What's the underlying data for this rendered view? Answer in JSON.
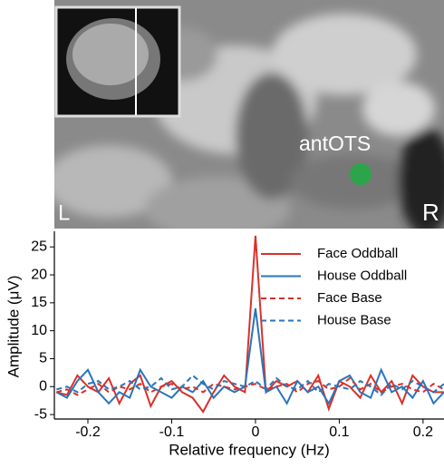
{
  "image_labels": {
    "region": "antOTS",
    "left": "L",
    "right": "R"
  },
  "chart_data": {
    "type": "line",
    "xlabel": "Relative frequency (Hz)",
    "ylabel": "Amplitude (μV)",
    "x": [
      -0.2375,
      -0.225,
      -0.2125,
      -0.2,
      -0.1875,
      -0.175,
      -0.1625,
      -0.15,
      -0.1375,
      -0.125,
      -0.1125,
      -0.1,
      -0.0875,
      -0.075,
      -0.0625,
      -0.05,
      -0.0375,
      -0.025,
      -0.0125,
      0,
      0.0125,
      0.025,
      0.0375,
      0.05,
      0.0625,
      0.075,
      0.0875,
      0.1,
      0.1125,
      0.125,
      0.1375,
      0.15,
      0.1625,
      0.175,
      0.1875,
      0.2,
      0.2125,
      0.225
    ],
    "series": [
      {
        "name": "Face Oddball",
        "color": "#d9312b",
        "linestyle": "solid",
        "values": [
          -1,
          -1.5,
          2,
          0,
          -1,
          1.5,
          -3,
          0.5,
          2,
          -3.5,
          0,
          1,
          -1,
          -2,
          -4.5,
          -1,
          2,
          0,
          -1,
          27,
          -1,
          1,
          0,
          1,
          -1,
          2,
          -4,
          1,
          0,
          -2,
          2,
          -1,
          1,
          -3,
          2,
          0,
          -1,
          -1
        ]
      },
      {
        "name": "House Oddball",
        "color": "#2a75bb",
        "linestyle": "solid",
        "values": [
          -1,
          -2,
          1,
          3,
          -1,
          -3,
          -1,
          -2,
          3,
          0,
          -1,
          -2,
          0,
          -1,
          1,
          -2,
          0,
          -1,
          0,
          14,
          -1,
          0,
          -3,
          1,
          -1,
          0,
          -3,
          1,
          2,
          -1,
          -2,
          3,
          -1,
          0,
          -2,
          1,
          -3,
          -1
        ]
      },
      {
        "name": "Face Base",
        "color": "#d9312b",
        "linestyle": "dashed",
        "values": [
          -1,
          -0.5,
          -1.5,
          -0.5,
          0.5,
          -1,
          0,
          -0.5,
          0.5,
          -1,
          0,
          0.5,
          -0.5,
          0,
          -1,
          0.5,
          0,
          -0.5,
          0,
          0.5,
          -0.5,
          0,
          0.5,
          -1,
          0.5,
          1,
          -0.5,
          0,
          1.5,
          -0.5,
          0.5,
          -1,
          0,
          0.5,
          -0.5,
          -1,
          0.5,
          -0.5
        ]
      },
      {
        "name": "House Base",
        "color": "#2a75bb",
        "linestyle": "dashed",
        "values": [
          -0.5,
          0,
          -1,
          0.5,
          1,
          -0.5,
          0,
          1,
          -0.5,
          0,
          1.5,
          -0.5,
          0,
          2,
          0.5,
          -0.5,
          1,
          0.5,
          0,
          1,
          -0.5,
          1.5,
          0,
          -0.5,
          1,
          -1,
          0.5,
          0,
          -0.5,
          1,
          0,
          -1.5,
          0.5,
          -0.5,
          1,
          0,
          -1,
          0.5
        ]
      }
    ],
    "xlim": [
      -0.24,
      0.225
    ],
    "xticks": [
      -0.2,
      -0.1,
      0,
      0.1,
      0.2
    ],
    "ylim": [
      -5.8,
      27.8
    ],
    "yticks": [
      -5,
      0,
      5,
      10,
      15,
      20,
      25
    ],
    "legend": "upper right",
    "grid": false
  }
}
